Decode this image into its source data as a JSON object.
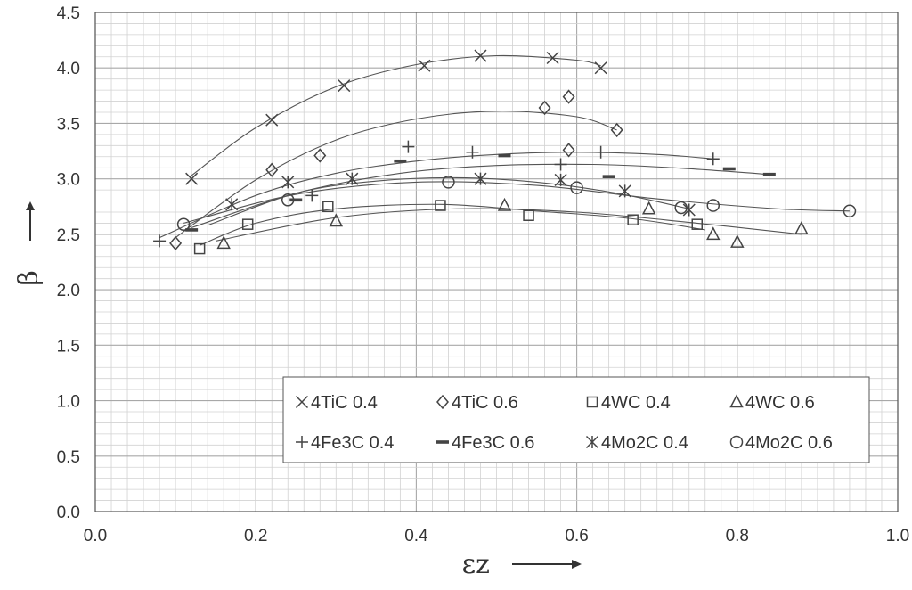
{
  "chart_data": {
    "type": "scatter",
    "title": "",
    "xlabel": "εz",
    "ylabel": "β",
    "xlim": [
      0.0,
      1.0
    ],
    "ylim": [
      0.0,
      4.5
    ],
    "x_ticks": [
      "0.0",
      "0.2",
      "0.4",
      "0.6",
      "0.8",
      "1.0"
    ],
    "y_ticks": [
      "0.0",
      "0.5",
      "1.0",
      "1.5",
      "2.0",
      "2.5",
      "3.0",
      "3.5",
      "4.0",
      "4.5"
    ],
    "grid": true,
    "legend_position": "bottom-right",
    "series": [
      {
        "name": "4TiC 0.4",
        "marker": "x",
        "points": [
          [
            0.12,
            3.0
          ],
          [
            0.22,
            3.53
          ],
          [
            0.31,
            3.84
          ],
          [
            0.41,
            4.02
          ],
          [
            0.48,
            4.11
          ],
          [
            0.57,
            4.09
          ],
          [
            0.63,
            4.0
          ]
        ],
        "trend": [
          [
            0.12,
            3.03
          ],
          [
            0.2,
            3.46
          ],
          [
            0.3,
            3.83
          ],
          [
            0.4,
            4.03
          ],
          [
            0.5,
            4.11
          ],
          [
            0.6,
            4.07
          ],
          [
            0.63,
            4.02
          ]
        ]
      },
      {
        "name": "4TiC 0.6",
        "marker": "diamond",
        "points": [
          [
            0.1,
            2.42
          ],
          [
            0.22,
            3.08
          ],
          [
            0.28,
            3.21
          ],
          [
            0.56,
            3.64
          ],
          [
            0.59,
            3.74
          ],
          [
            0.59,
            3.26
          ],
          [
            0.65,
            3.44
          ]
        ],
        "trend": [
          [
            0.1,
            2.47
          ],
          [
            0.2,
            2.99
          ],
          [
            0.3,
            3.35
          ],
          [
            0.4,
            3.54
          ],
          [
            0.5,
            3.61
          ],
          [
            0.6,
            3.56
          ],
          [
            0.65,
            3.44
          ]
        ]
      },
      {
        "name": "4WC 0.4",
        "marker": "square",
        "points": [
          [
            0.13,
            2.37
          ],
          [
            0.19,
            2.59
          ],
          [
            0.29,
            2.75
          ],
          [
            0.43,
            2.76
          ],
          [
            0.54,
            2.67
          ],
          [
            0.67,
            2.63
          ],
          [
            0.75,
            2.59
          ]
        ],
        "trend": [
          [
            0.13,
            2.4
          ],
          [
            0.2,
            2.6
          ],
          [
            0.3,
            2.73
          ],
          [
            0.43,
            2.77
          ],
          [
            0.55,
            2.71
          ],
          [
            0.67,
            2.64
          ],
          [
            0.76,
            2.54
          ]
        ]
      },
      {
        "name": "4WC 0.6",
        "marker": "triangle",
        "points": [
          [
            0.16,
            2.42
          ],
          [
            0.3,
            2.62
          ],
          [
            0.51,
            2.76
          ],
          [
            0.69,
            2.73
          ],
          [
            0.77,
            2.5
          ],
          [
            0.8,
            2.43
          ],
          [
            0.88,
            2.55
          ]
        ],
        "trend": [
          [
            0.15,
            2.44
          ],
          [
            0.3,
            2.65
          ],
          [
            0.45,
            2.73
          ],
          [
            0.6,
            2.7
          ],
          [
            0.75,
            2.6
          ],
          [
            0.88,
            2.5
          ]
        ]
      },
      {
        "name": "4Fe3C 0.4",
        "marker": "plus",
        "points": [
          [
            0.08,
            2.44
          ],
          [
            0.27,
            2.85
          ],
          [
            0.39,
            3.29
          ],
          [
            0.47,
            3.24
          ],
          [
            0.58,
            3.13
          ],
          [
            0.63,
            3.24
          ],
          [
            0.77,
            3.18
          ]
        ],
        "trend": [
          [
            0.08,
            2.47
          ],
          [
            0.2,
            2.85
          ],
          [
            0.3,
            3.05
          ],
          [
            0.4,
            3.16
          ],
          [
            0.5,
            3.22
          ],
          [
            0.6,
            3.24
          ],
          [
            0.7,
            3.22
          ],
          [
            0.77,
            3.18
          ]
        ]
      },
      {
        "name": "4Fe3C 0.6",
        "marker": "dash",
        "points": [
          [
            0.12,
            2.54
          ],
          [
            0.25,
            2.81
          ],
          [
            0.38,
            3.16
          ],
          [
            0.51,
            3.21
          ],
          [
            0.64,
            3.02
          ],
          [
            0.79,
            3.09
          ],
          [
            0.84,
            3.04
          ]
        ],
        "trend": [
          [
            0.12,
            2.56
          ],
          [
            0.25,
            2.87
          ],
          [
            0.38,
            3.05
          ],
          [
            0.5,
            3.12
          ],
          [
            0.62,
            3.13
          ],
          [
            0.72,
            3.1
          ],
          [
            0.84,
            3.04
          ]
        ]
      },
      {
        "name": "4Mo2C 0.4",
        "marker": "asterisk",
        "points": [
          [
            0.17,
            2.77
          ],
          [
            0.24,
            2.97
          ],
          [
            0.32,
            3.0
          ],
          [
            0.48,
            3.0
          ],
          [
            0.58,
            2.99
          ],
          [
            0.66,
            2.89
          ],
          [
            0.74,
            2.72
          ]
        ],
        "trend": [
          [
            0.14,
            2.58
          ],
          [
            0.25,
            2.87
          ],
          [
            0.35,
            2.98
          ],
          [
            0.45,
            3.01
          ],
          [
            0.55,
            2.97
          ],
          [
            0.65,
            2.87
          ],
          [
            0.74,
            2.73
          ]
        ]
      },
      {
        "name": "4Mo2C 0.6",
        "marker": "circle",
        "points": [
          [
            0.11,
            2.59
          ],
          [
            0.24,
            2.81
          ],
          [
            0.44,
            2.97
          ],
          [
            0.6,
            2.92
          ],
          [
            0.73,
            2.74
          ],
          [
            0.77,
            2.76
          ],
          [
            0.94,
            2.71
          ]
        ],
        "trend": [
          [
            0.11,
            2.6
          ],
          [
            0.25,
            2.86
          ],
          [
            0.4,
            2.97
          ],
          [
            0.55,
            2.94
          ],
          [
            0.7,
            2.82
          ],
          [
            0.85,
            2.73
          ],
          [
            0.94,
            2.71
          ]
        ]
      }
    ]
  }
}
